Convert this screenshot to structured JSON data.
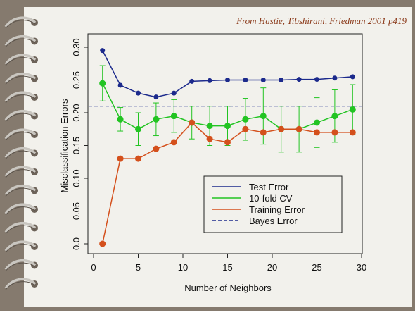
{
  "chart_data": {
    "type": "line",
    "annotation": "From Hastie, Tibshirani, Friedman 2001 p419",
    "x_label": "Number of Neighbors",
    "y_label": "Misclassification Errors",
    "x": [
      1,
      3,
      5,
      7,
      9,
      11,
      13,
      15,
      17,
      19,
      21,
      23,
      25,
      27,
      29
    ],
    "series": [
      {
        "name": "Test Error",
        "color": "#1c2a8c",
        "values": [
          0.295,
          0.242,
          0.23,
          0.224,
          0.23,
          0.248,
          0.249,
          0.25,
          0.25,
          0.25,
          0.25,
          0.251,
          0.251,
          0.253,
          0.255
        ]
      },
      {
        "name": "10-fold CV",
        "color": "#22c422",
        "values": [
          0.245,
          0.19,
          0.175,
          0.19,
          0.195,
          0.185,
          0.18,
          0.18,
          0.19,
          0.195,
          0.175,
          0.175,
          0.185,
          0.195,
          0.205
        ],
        "errors": [
          0.027,
          0.018,
          0.025,
          0.025,
          0.025,
          0.025,
          0.03,
          0.03,
          0.032,
          0.043,
          0.035,
          0.035,
          0.038,
          0.04,
          0.038
        ]
      },
      {
        "name": "Training Error",
        "color": "#d4501c",
        "values": [
          0.0,
          0.13,
          0.13,
          0.145,
          0.155,
          0.185,
          0.16,
          0.155,
          0.175,
          0.17,
          0.175,
          0.175,
          0.17,
          0.17,
          0.17
        ]
      }
    ],
    "hlines": [
      {
        "name": "Bayes Error",
        "value": 0.21,
        "color": "#1c2a8c",
        "dashed": true
      }
    ],
    "xlim": [
      0,
      30
    ],
    "xticks": [
      0,
      5,
      10,
      15,
      20,
      25,
      30
    ],
    "ylim": [
      0,
      0.3
    ],
    "yticks": [
      {
        "value": 0,
        "label": "0.0"
      },
      0.05,
      {
        "value": 0.1,
        "label": "0.10"
      },
      0.15,
      {
        "value": 0.2,
        "label": "0.20"
      },
      0.25,
      {
        "value": 0.3,
        "label": "0.30"
      }
    ],
    "legend": "bottom-right"
  }
}
